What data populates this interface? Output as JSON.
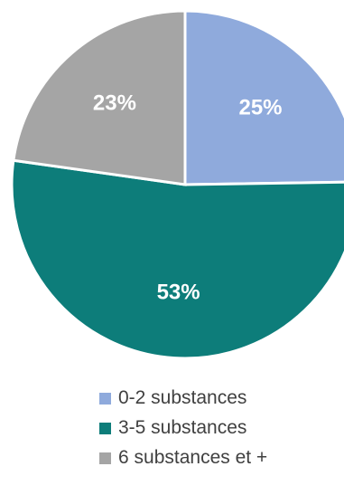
{
  "chart_data": {
    "type": "pie",
    "title": "",
    "slices": [
      {
        "label": "0-2 substances",
        "value": 25,
        "value_label": "25%",
        "color": "#8FAADC"
      },
      {
        "label": "3-5 substances",
        "value": 53,
        "value_label": "53%",
        "color": "#0D7D7A"
      },
      {
        "label": "6 substances et +",
        "value": 23,
        "value_label": "23%",
        "color": "#A5A5A5"
      }
    ],
    "legend_position": "bottom"
  }
}
